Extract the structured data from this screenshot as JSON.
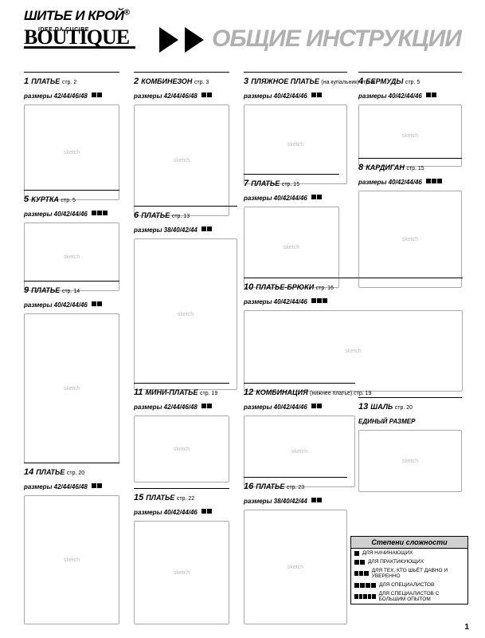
{
  "header": {
    "brand1": "ШИТЬЕ И КРОЙ",
    "brand2_sub": "IDEE DA CUCIRE",
    "brand2": "BOUTIQUE",
    "title": "ОБЩИЕ ИНСТРУКЦИИ"
  },
  "items": {
    "i1": {
      "num": "1",
      "name": "ПЛАТЬЕ",
      "page": "стр. 2",
      "sizes": "размеры 42/44/46/48",
      "diff": 2,
      "sketch_h": 120
    },
    "i2": {
      "num": "2",
      "name": "КОМБИНЕЗОН",
      "page": "стр. 3",
      "sizes": "размеры 42/44/46/48",
      "diff": 2,
      "sketch_h": 140
    },
    "i3": {
      "num": "3",
      "name": "ПЛЯЖНОЕ ПЛАТЬЕ",
      "page": "(на купальник) стр. 4",
      "sizes": "размеры 40/42/44/46",
      "diff": 2,
      "sketch_h": 100
    },
    "i4": {
      "num": "4",
      "name": "БЕРМУДЫ",
      "page": "стр. 5",
      "sizes": "размеры 40/42/44/46",
      "diff": 2,
      "sketch_h": 78
    },
    "i7": {
      "num": "7",
      "name": "ПЛАТЬЕ",
      "page": "стр. 15",
      "sizes": "размеры 40/42/44/46",
      "diff": 2,
      "sketch_h": 102
    },
    "i8": {
      "num": "8",
      "name": "КАРДИГАН",
      "page": "стр. 15",
      "sizes": "размеры 40/42/44/46",
      "diff": 3,
      "sketch_h": 122
    },
    "i5": {
      "num": "5",
      "name": "КУРТКА",
      "page": "стр. 5",
      "sizes": "размеры 40/42/44/46",
      "diff": 3,
      "sketch_h": 86
    },
    "i6": {
      "num": "6",
      "name": "ПЛАТЬЕ",
      "page": "стр. 13",
      "sizes": "размеры 38/40/42/44",
      "diff": 2,
      "sketch_h": 190
    },
    "i10": {
      "num": "10",
      "name": "ПЛАТЬЕ-БРЮКИ",
      "page": "стр. 16",
      "sizes": "размеры 40/42/44/46",
      "diff": 3,
      "sketch_h": 102
    },
    "i9": {
      "num": "9",
      "name": "ПЛАТЬЕ",
      "page": "стр. 14",
      "sizes": "размеры 40/42/44/46",
      "diff": 2,
      "sketch_h": 188
    },
    "i11": {
      "num": "11",
      "name": "МИНИ-ПЛАТЬЕ",
      "page": "стр. 19",
      "sizes": "размеры 42/44/46/48",
      "diff": 2,
      "sketch_h": 84
    },
    "i12": {
      "num": "12",
      "name": "КОМБИНАЦИЯ",
      "page": "(нижнее платье) стр. 19",
      "sizes": "размеры 40/42/44/46",
      "diff": 2,
      "sketch_h": 90
    },
    "i13": {
      "num": "13",
      "name": "ШАЛЬ",
      "page": "стр. 20",
      "sizes": "ЕДИНЫЙ РАЗМЕР",
      "diff": 0,
      "sketch_h": 78
    },
    "i14": {
      "num": "14",
      "name": "ПЛАТЬЕ",
      "page": "стр. 20",
      "sizes": "размеры 42/44/46/48",
      "diff": 2,
      "sketch_h": 162
    },
    "i15": {
      "num": "15",
      "name": "ПЛАТЬЕ",
      "page": "стр. 22",
      "sizes": "размеры 40/42/44/46",
      "diff": 2,
      "sketch_h": 130
    },
    "i16": {
      "num": "16",
      "name": "ПЛАТЬЕ",
      "page": "стр. 23",
      "sizes": "размеры 38/40/42/44",
      "diff": 2,
      "sketch_h": 144
    }
  },
  "legend": {
    "title": "Степени сложности",
    "rows": [
      {
        "sq": 1,
        "label": "ДЛЯ НАЧИНАЮЩИХ"
      },
      {
        "sq": 2,
        "label": "ДЛЯ ПРАКТИКУЮЩИХ"
      },
      {
        "sq": 3,
        "label": "ДЛЯ ТЕХ, КТО ШЬЁТ ДАВНО И УВЕРЕННО"
      },
      {
        "sq": 4,
        "label": "ДЛЯ СПЕЦИАЛИСТОВ"
      },
      {
        "sq": 5,
        "label": "ДЛЯ СПЕЦИАЛИСТОВ С БОЛЬШИМ ОПЫТОМ"
      }
    ]
  },
  "page_number": "1"
}
